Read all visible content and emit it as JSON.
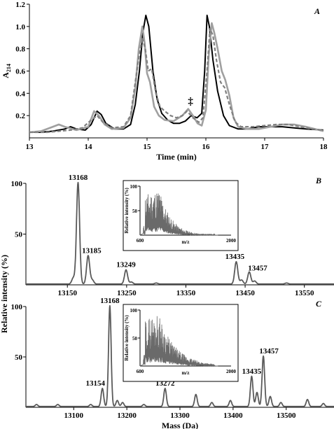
{
  "chart_data": [
    {
      "id": "A",
      "type": "line",
      "title": "A",
      "xlabel": "Time (min)",
      "ylabel": "A214",
      "xlim": [
        13,
        18
      ],
      "ylim": [
        0,
        1.2
      ],
      "x_ticks": [
        "13",
        "14",
        "15",
        "16",
        "17",
        "18"
      ],
      "y_ticks": [
        "0.2",
        "0.4",
        "0.6",
        "0.8",
        "1.0",
        "1.2"
      ],
      "annotation": "‡",
      "annotation_pos": [
        15.74,
        0.3
      ],
      "series": [
        {
          "color": "#000000",
          "style": "solid",
          "points": [
            [
              13.0,
              0.05
            ],
            [
              13.2,
              0.05
            ],
            [
              13.4,
              0.06
            ],
            [
              13.6,
              0.08
            ],
            [
              13.7,
              0.1
            ],
            [
              13.8,
              0.08
            ],
            [
              13.95,
              0.07
            ],
            [
              14.05,
              0.12
            ],
            [
              14.15,
              0.24
            ],
            [
              14.22,
              0.21
            ],
            [
              14.3,
              0.13
            ],
            [
              14.45,
              0.08
            ],
            [
              14.6,
              0.08
            ],
            [
              14.72,
              0.12
            ],
            [
              14.8,
              0.3
            ],
            [
              14.87,
              0.6
            ],
            [
              14.93,
              0.95
            ],
            [
              14.98,
              1.1
            ],
            [
              15.03,
              1.0
            ],
            [
              15.1,
              0.6
            ],
            [
              15.17,
              0.35
            ],
            [
              15.25,
              0.22
            ],
            [
              15.35,
              0.16
            ],
            [
              15.45,
              0.13
            ],
            [
              15.55,
              0.13
            ],
            [
              15.65,
              0.15
            ],
            [
              15.75,
              0.2
            ],
            [
              15.85,
              0.18
            ],
            [
              15.93,
              0.22
            ],
            [
              15.98,
              0.6
            ],
            [
              16.02,
              1.1
            ],
            [
              16.06,
              1.0
            ],
            [
              16.12,
              0.7
            ],
            [
              16.2,
              0.42
            ],
            [
              16.3,
              0.2
            ],
            [
              16.4,
              0.11
            ],
            [
              16.55,
              0.08
            ],
            [
              16.7,
              0.08
            ],
            [
              16.9,
              0.1
            ],
            [
              17.1,
              0.1
            ],
            [
              17.3,
              0.1
            ],
            [
              17.5,
              0.09
            ],
            [
              17.7,
              0.08
            ],
            [
              18.0,
              0.07
            ]
          ]
        },
        {
          "color": "#a0a0a0",
          "style": "solid",
          "points": [
            [
              13.0,
              0.05
            ],
            [
              13.2,
              0.06
            ],
            [
              13.4,
              0.1
            ],
            [
              13.5,
              0.12
            ],
            [
              13.6,
              0.1
            ],
            [
              13.8,
              0.07
            ],
            [
              14.0,
              0.1
            ],
            [
              14.1,
              0.24
            ],
            [
              14.18,
              0.2
            ],
            [
              14.28,
              0.12
            ],
            [
              14.4,
              0.08
            ],
            [
              14.6,
              0.09
            ],
            [
              14.72,
              0.18
            ],
            [
              14.8,
              0.45
            ],
            [
              14.86,
              0.8
            ],
            [
              14.92,
              1.0
            ],
            [
              14.96,
              0.85
            ],
            [
              15.0,
              0.58
            ],
            [
              15.05,
              0.5
            ],
            [
              15.12,
              0.28
            ],
            [
              15.2,
              0.2
            ],
            [
              15.3,
              0.16
            ],
            [
              15.45,
              0.15
            ],
            [
              15.6,
              0.2
            ],
            [
              15.7,
              0.26
            ],
            [
              15.78,
              0.2
            ],
            [
              15.86,
              0.13
            ],
            [
              15.93,
              0.11
            ],
            [
              16.0,
              0.25
            ],
            [
              16.05,
              0.75
            ],
            [
              16.1,
              1.03
            ],
            [
              16.14,
              0.95
            ],
            [
              16.2,
              0.8
            ],
            [
              16.27,
              0.6
            ],
            [
              16.33,
              0.52
            ],
            [
              16.4,
              0.38
            ],
            [
              16.47,
              0.18
            ],
            [
              16.55,
              0.1
            ],
            [
              16.7,
              0.08
            ],
            [
              16.9,
              0.08
            ],
            [
              17.1,
              0.1
            ],
            [
              17.3,
              0.12
            ],
            [
              17.5,
              0.12
            ],
            [
              17.7,
              0.1
            ],
            [
              18.0,
              0.06
            ]
          ]
        },
        {
          "color": "#808080",
          "style": "dashed",
          "points": [
            [
              13.0,
              0.05
            ],
            [
              13.3,
              0.05
            ],
            [
              13.5,
              0.06
            ],
            [
              13.7,
              0.07
            ],
            [
              13.9,
              0.09
            ],
            [
              14.05,
              0.16
            ],
            [
              14.15,
              0.2
            ],
            [
              14.25,
              0.14
            ],
            [
              14.4,
              0.09
            ],
            [
              14.6,
              0.1
            ],
            [
              14.72,
              0.2
            ],
            [
              14.8,
              0.5
            ],
            [
              14.86,
              0.72
            ],
            [
              14.92,
              0.9
            ],
            [
              14.97,
              0.8
            ],
            [
              15.02,
              0.6
            ],
            [
              15.08,
              0.62
            ],
            [
              15.15,
              0.4
            ],
            [
              15.22,
              0.28
            ],
            [
              15.3,
              0.24
            ],
            [
              15.4,
              0.2
            ],
            [
              15.5,
              0.18
            ],
            [
              15.6,
              0.2
            ],
            [
              15.68,
              0.24
            ],
            [
              15.78,
              0.18
            ],
            [
              15.88,
              0.14
            ],
            [
              15.95,
              0.18
            ],
            [
              16.02,
              0.6
            ],
            [
              16.07,
              0.98
            ],
            [
              16.12,
              0.92
            ],
            [
              16.18,
              0.7
            ],
            [
              16.25,
              0.5
            ],
            [
              16.32,
              0.45
            ],
            [
              16.4,
              0.3
            ],
            [
              16.5,
              0.14
            ],
            [
              16.6,
              0.1
            ],
            [
              16.8,
              0.1
            ],
            [
              17.0,
              0.11
            ],
            [
              17.2,
              0.12
            ],
            [
              17.4,
              0.12
            ],
            [
              17.6,
              0.1
            ],
            [
              17.8,
              0.08
            ],
            [
              18.0,
              0.07
            ]
          ]
        }
      ]
    },
    {
      "id": "B",
      "type": "line",
      "title": "B",
      "xlabel": "",
      "ylabel": "",
      "xlim": [
        13080,
        13600
      ],
      "ylim": [
        0,
        100
      ],
      "x_ticks": [
        "13150",
        "13250",
        "13350",
        "13450",
        "13550"
      ],
      "x_tick_values": [
        13150,
        13250,
        13350,
        13450,
        13550
      ],
      "y_ticks": [
        "50",
        "100"
      ],
      "peaks": [
        {
          "mass": 13168,
          "label": "13168",
          "value": 100
        },
        {
          "mass": 13185,
          "label": "13185",
          "value": 28
        },
        {
          "mass": 13249,
          "label": "13249",
          "value": 14
        },
        {
          "mass": 13435,
          "label": "13435",
          "value": 22
        },
        {
          "mass": 13457,
          "label": "13457",
          "value": 12
        }
      ],
      "inset": {
        "ylabel": "Relative intensity (%)",
        "xlabel": "m/z",
        "x_ticks": [
          "600",
          "2000"
        ],
        "y_ticks": [
          "50",
          "100"
        ],
        "xlim": [
          600,
          2000
        ],
        "ylim": [
          0,
          100
        ]
      }
    },
    {
      "id": "C",
      "type": "line",
      "title": "C",
      "xlabel": "Mass (Da)",
      "ylabel": "Relative intensity (%)",
      "xlim": [
        13010,
        13590
      ],
      "ylim": [
        0,
        100
      ],
      "x_ticks": [
        "13100",
        "13200",
        "13300",
        "13400",
        "13500"
      ],
      "x_tick_values": [
        13100,
        13200,
        13300,
        13400,
        13500
      ],
      "y_ticks": [
        "50",
        "100"
      ],
      "peaks": [
        {
          "mass": 13154,
          "label": "13154",
          "value": 18
        },
        {
          "mass": 13168,
          "label": "13168",
          "value": 100
        },
        {
          "mass": 13272,
          "label": "13272",
          "value": 18
        },
        {
          "mass": 13435,
          "label": "13435",
          "value": 30
        },
        {
          "mass": 13457,
          "label": "13457",
          "value": 50
        }
      ],
      "inset": {
        "ylabel": "Relative intensity (%)",
        "xlabel": "m/z",
        "x_ticks": [
          "600",
          "2000"
        ],
        "y_ticks": [
          "50",
          "100"
        ],
        "xlim": [
          600,
          2000
        ],
        "ylim": [
          0,
          100
        ]
      }
    }
  ]
}
